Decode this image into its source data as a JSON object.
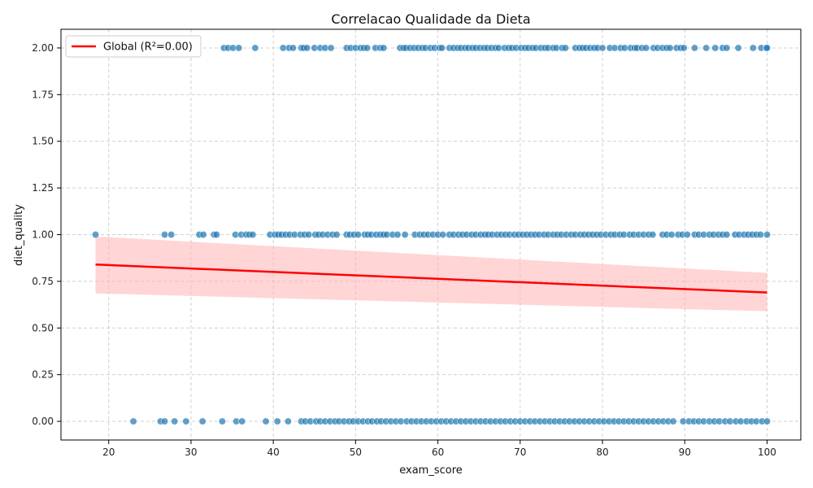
{
  "chart_data": {
    "type": "scatter",
    "title": "Correlacao Qualidade da Dieta",
    "xlabel": "exam_score",
    "ylabel": "diet_quality",
    "xlim": [
      14.2,
      104.1
    ],
    "ylim": [
      -0.1,
      2.1
    ],
    "xticks": [
      20,
      30,
      40,
      50,
      60,
      70,
      80,
      90,
      100
    ],
    "yticks": [
      0.0,
      0.25,
      0.5,
      0.75,
      1.0,
      1.25,
      1.5,
      1.75,
      2.0
    ],
    "ytick_labels": [
      "0.00",
      "0.25",
      "0.50",
      "0.75",
      "1.00",
      "1.25",
      "1.50",
      "1.75",
      "2.00"
    ],
    "grid": true,
    "legend": {
      "placement": "top-left",
      "entries": [
        "Global (R²=0.00)"
      ]
    },
    "colors": {
      "points": "#1f77b4",
      "regression": "#ff0000",
      "band": "#ffb3b3"
    },
    "regression": {
      "name": "Global (R²=0.00)",
      "x": [
        18.4,
        100
      ],
      "y": [
        0.84,
        0.69
      ],
      "ci_lower": [
        0.685,
        0.59
      ],
      "ci_upper": [
        0.99,
        0.795
      ]
    },
    "series": [
      {
        "y": 2,
        "x": [
          34.0,
          34.5,
          35.1,
          35.8,
          37.8,
          41.2,
          41.9,
          42.4,
          43.4,
          43.7,
          44.1,
          45.0,
          45.7,
          46.3,
          47.0,
          48.9,
          49.4,
          50.0,
          50.6,
          51.0,
          51.4,
          52.4,
          53.0,
          53.4,
          55.4,
          55.8,
          56.1,
          56.6,
          57.1,
          57.6,
          58.1,
          58.5,
          59.1,
          59.6,
          60.2,
          60.5,
          61.4,
          61.9,
          62.4,
          62.8,
          63.3,
          63.7,
          64.2,
          64.6,
          65.1,
          65.6,
          66.0,
          66.5,
          67.0,
          67.4,
          68.1,
          68.6,
          69.0,
          69.5,
          70.1,
          70.6,
          71.0,
          71.5,
          71.9,
          72.5,
          73.0,
          73.4,
          74.0,
          74.4,
          75.1,
          75.5,
          76.7,
          77.2,
          77.6,
          78.0,
          78.5,
          79.0,
          79.4,
          80.0,
          80.9,
          81.5,
          82.2,
          82.7,
          83.4,
          83.9,
          84.2,
          84.8,
          85.3,
          86.2,
          86.7,
          87.3,
          87.8,
          88.2,
          89.0,
          89.5,
          89.9,
          91.2,
          92.6,
          93.7,
          94.6,
          95.1,
          96.5,
          98.3,
          99.3,
          99.9,
          100.0
        ]
      },
      {
        "y": 1,
        "x": [
          18.4,
          26.8,
          27.6,
          31.0,
          31.5,
          32.8,
          33.1,
          35.4,
          36.1,
          36.7,
          37.1,
          37.5,
          39.6,
          40.2,
          40.6,
          41.0,
          41.5,
          42.0,
          42.6,
          43.3,
          43.8,
          44.3,
          45.1,
          45.5,
          46.0,
          46.6,
          47.2,
          47.7,
          48.9,
          49.3,
          49.8,
          50.3,
          51.1,
          51.5,
          51.9,
          52.5,
          53.0,
          53.4,
          53.8,
          54.5,
          55.1,
          56.0,
          57.2,
          57.8,
          58.3,
          58.8,
          59.4,
          60.0,
          60.6,
          61.4,
          61.9,
          62.5,
          63.0,
          63.5,
          64.1,
          64.6,
          65.2,
          65.7,
          66.1,
          66.6,
          67.2,
          67.7,
          68.2,
          68.7,
          69.3,
          69.8,
          70.3,
          70.8,
          71.3,
          71.8,
          72.3,
          72.9,
          73.4,
          74.0,
          74.5,
          75.0,
          75.6,
          76.2,
          76.7,
          77.3,
          77.8,
          78.3,
          78.8,
          79.3,
          79.8,
          80.4,
          81.0,
          81.5,
          82.1,
          82.6,
          83.3,
          83.8,
          84.4,
          85.0,
          85.6,
          86.1,
          87.3,
          87.8,
          88.4,
          89.2,
          89.7,
          90.3,
          91.2,
          91.7,
          92.3,
          93.0,
          93.5,
          94.1,
          94.6,
          95.1,
          96.1,
          96.6,
          97.2,
          97.7,
          98.2,
          98.7,
          99.2,
          100.0
        ]
      },
      {
        "y": 0,
        "x": [
          23.0,
          26.3,
          26.8,
          28.0,
          29.4,
          31.4,
          33.8,
          35.5,
          36.2,
          39.1,
          40.5,
          41.8,
          43.4,
          43.9,
          44.5,
          45.2,
          45.7,
          46.3,
          46.9,
          47.5,
          48.0,
          48.6,
          49.2,
          49.7,
          50.3,
          50.9,
          51.5,
          52.0,
          52.6,
          53.1,
          53.7,
          54.3,
          54.9,
          55.5,
          56.2,
          56.8,
          57.4,
          58.0,
          58.6,
          59.2,
          59.8,
          60.4,
          61.0,
          61.6,
          62.2,
          62.8,
          63.4,
          64.0,
          64.6,
          65.2,
          65.8,
          66.4,
          67.0,
          67.6,
          68.2,
          68.8,
          69.4,
          70.0,
          70.6,
          71.2,
          71.8,
          72.4,
          73.0,
          73.6,
          74.2,
          74.8,
          75.4,
          76.0,
          76.6,
          77.2,
          77.8,
          78.4,
          79.0,
          79.6,
          80.2,
          80.8,
          81.4,
          82.0,
          82.6,
          83.2,
          83.8,
          84.4,
          85.0,
          85.6,
          86.2,
          86.8,
          87.4,
          88.0,
          88.6,
          89.8,
          90.5,
          91.1,
          91.7,
          92.3,
          93.0,
          93.6,
          94.2,
          94.9,
          95.5,
          96.2,
          96.8,
          97.5,
          98.1,
          98.7,
          99.4,
          100.0
        ]
      }
    ]
  }
}
